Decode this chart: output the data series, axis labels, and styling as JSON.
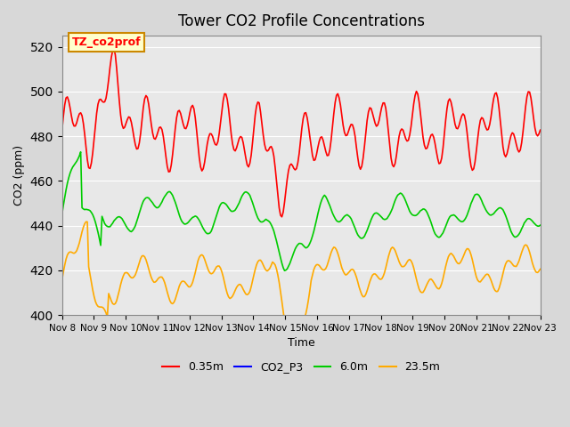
{
  "title": "Tower CO2 Profile Concentrations",
  "xlabel": "Time",
  "ylabel": "CO2 (ppm)",
  "ylim": [
    400,
    525
  ],
  "yticks": [
    400,
    420,
    440,
    460,
    480,
    500,
    520
  ],
  "annotation_text": "TZ_co2prof",
  "annotation_bg": "#ffffcc",
  "annotation_border": "#cc8800",
  "legend_entries": [
    "0.35m",
    "CO2_P3",
    "6.0m",
    "23.5m"
  ],
  "legend_colors": [
    "#ff0000",
    "#0000ff",
    "#00cc00",
    "#ffaa00"
  ],
  "xtick_labels": [
    "Nov 8",
    "Nov 9",
    "Nov 10",
    "Nov 11",
    "Nov 12",
    "Nov 13",
    "Nov 14",
    "Nov 15",
    "Nov 16",
    "Nov 17",
    "Nov 18",
    "Nov 19",
    "Nov 20",
    "Nov 21",
    "Nov 22",
    "Nov 23"
  ],
  "n_points": 360,
  "seed": 42
}
